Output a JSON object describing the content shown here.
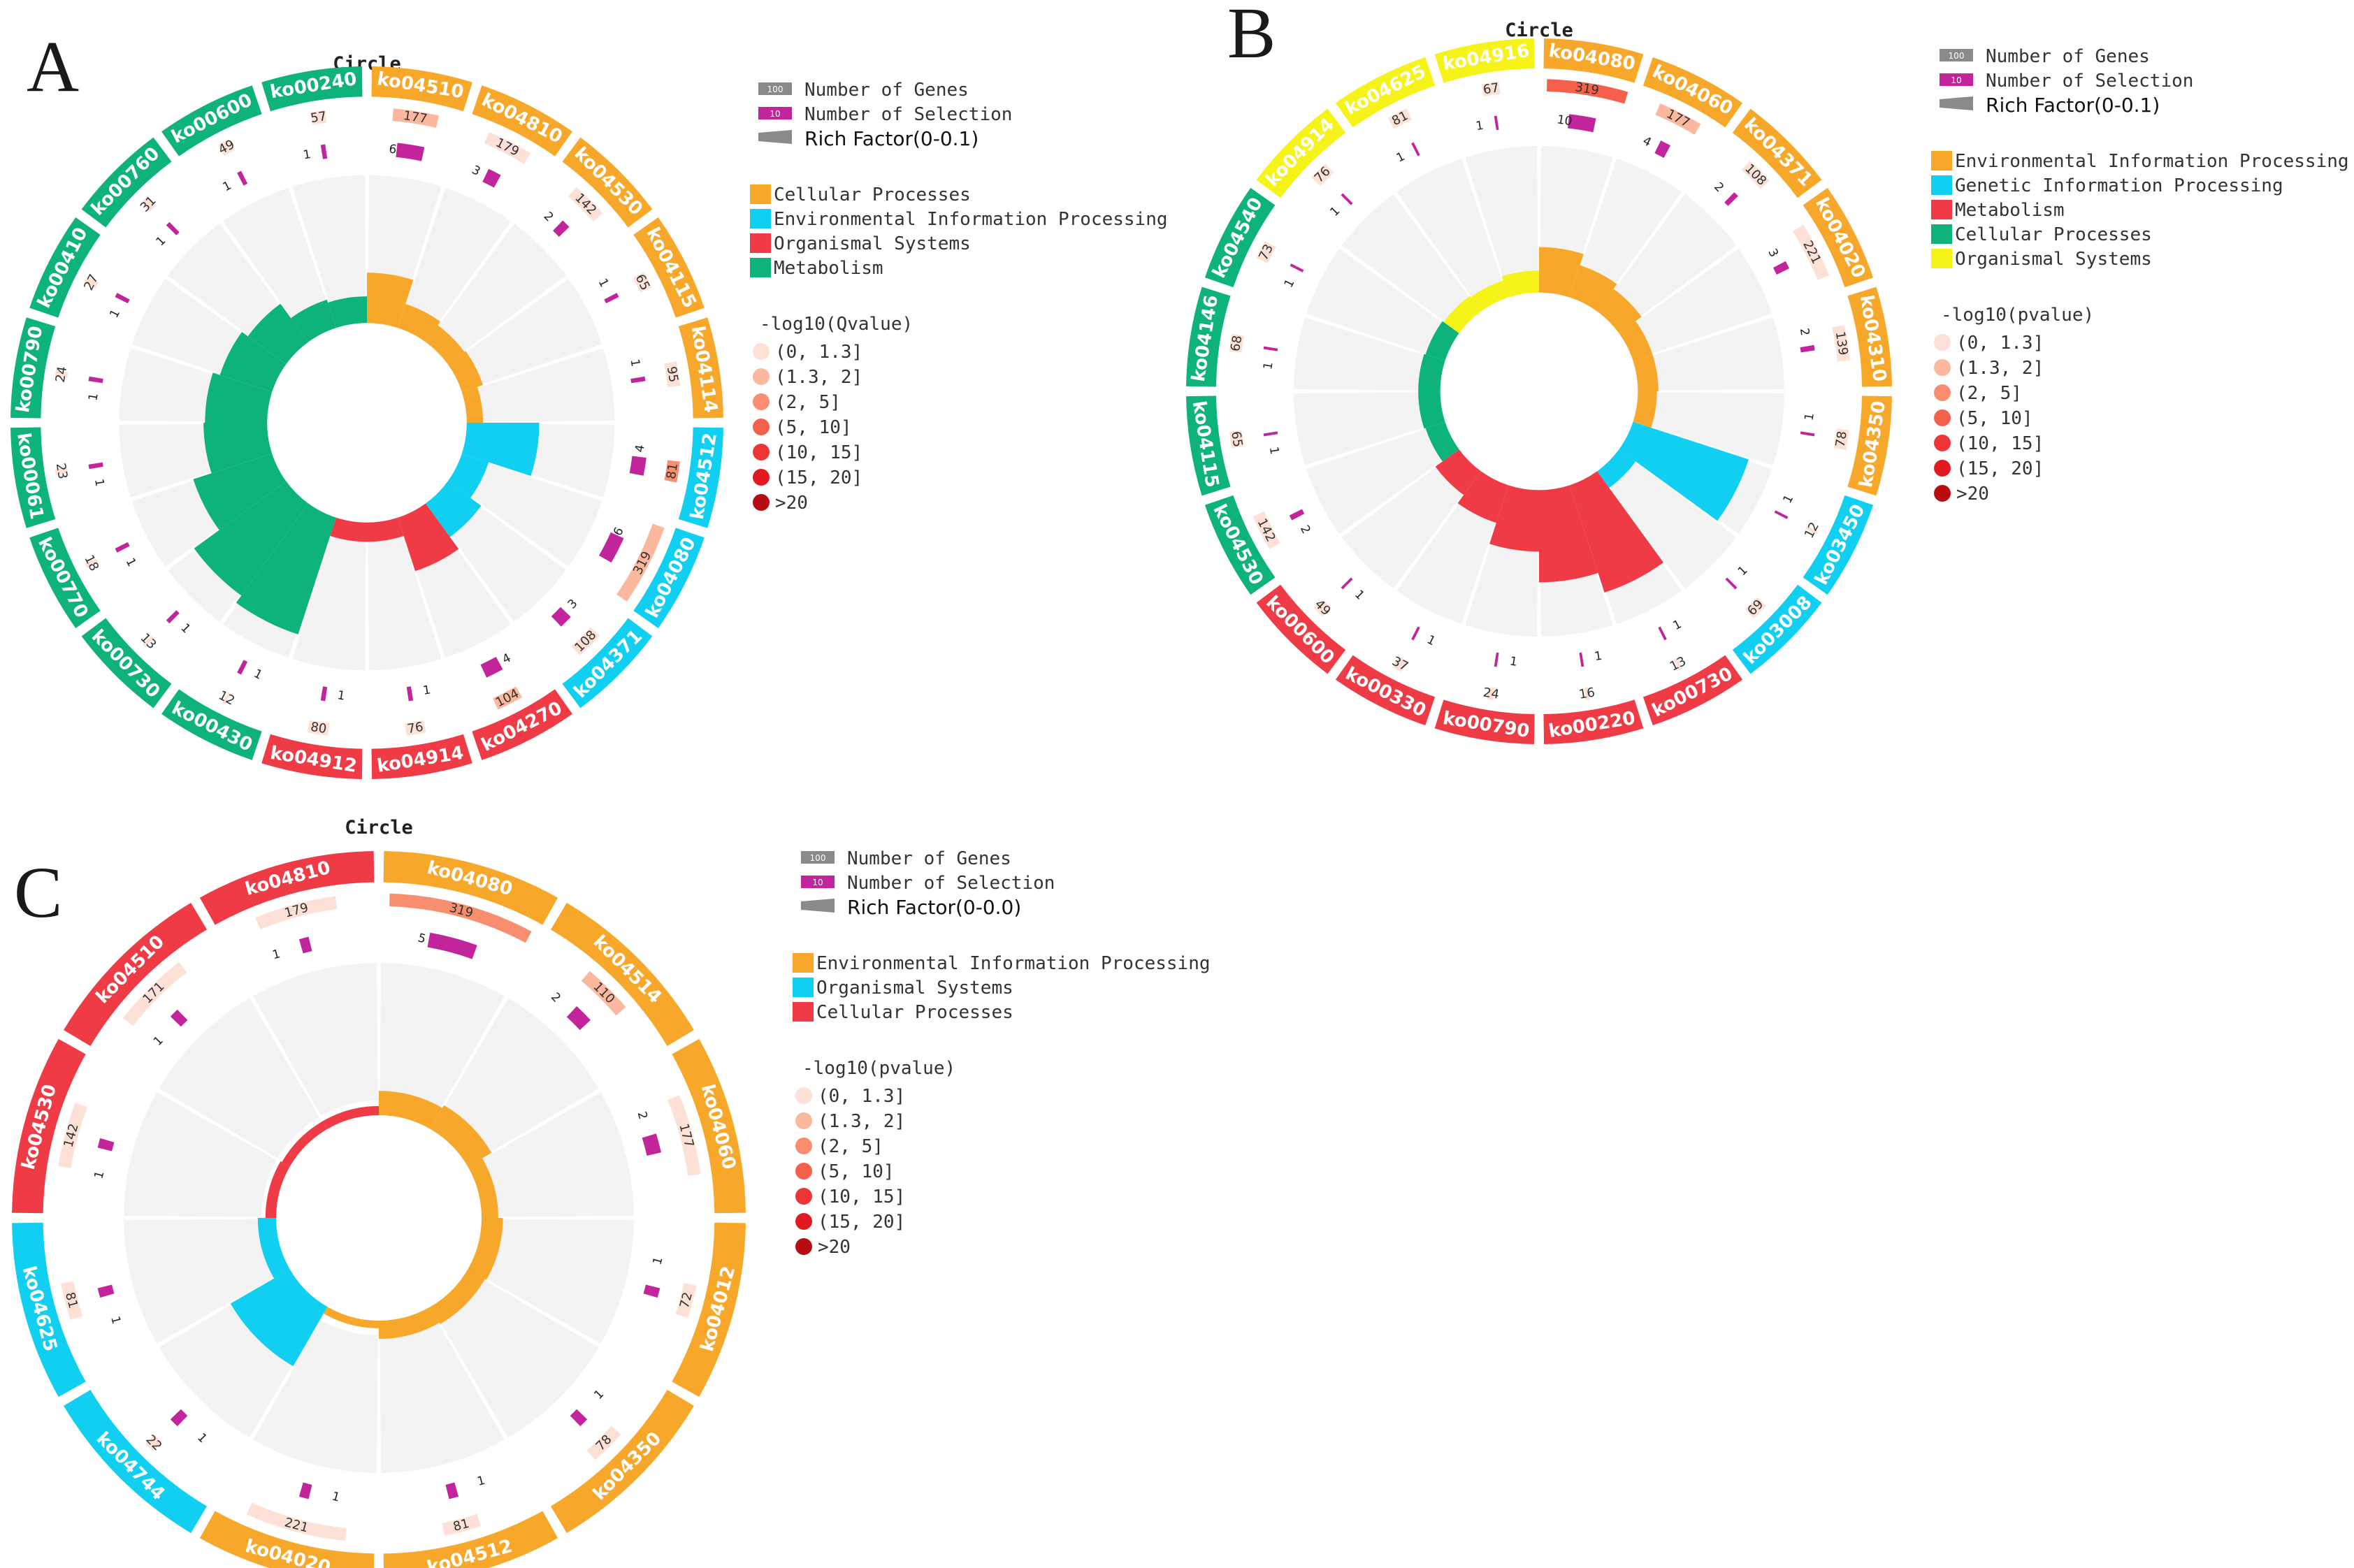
{
  "colors": {
    "cat": {
      "Cellular Processes": "#F7A82A",
      "Environmental Information Processing": "#F7A82A",
      "Organismal Systems": "#EE3B46",
      "Metabolism": "#0DB37A",
      "Genetic Information Processing": "#10CFF0"
    },
    "catA": {
      "Cellular Processes": "#F7A82A",
      "Environmental Information Processing": "#10CFF0",
      "Organismal Systems": "#EE3B46",
      "Metabolism": "#0DB37A"
    },
    "catB": {
      "Environmental Information Processing": "#F7A82A",
      "Genetic Information Processing": "#10CFF0",
      "Metabolism": "#EE3B46",
      "Cellular Processes": "#0DB37A",
      "Organismal Systems": "#F5F317"
    },
    "catC": {
      "Environmental Information Processing": "#F7A82A",
      "Organismal Systems": "#10CFF0",
      "Cellular Processes": "#EE3B46"
    },
    "scale": [
      "#FDE1D6",
      "#FBB89E",
      "#F88D6F",
      "#F4604B",
      "#ED3535",
      "#E21A1F",
      "#B70D13"
    ],
    "selection": "#C2249C",
    "genes_swatch": "#8A8A8A",
    "rich_swatch": "#8A8A8A",
    "ring_bg": "#F3F3F3"
  },
  "legend_common": {
    "genes_label": "Number of Genes",
    "genes_swatch_text": "100",
    "sel_label": "Number of Selection",
    "sel_swatch_text": "10",
    "scale_labels": [
      "(0, 1.3]",
      "(1.3, 2]",
      "(2, 5]",
      "(5, 10]",
      "(10, 15]",
      "(15, 20]",
      ">20"
    ]
  },
  "panels": [
    {
      "letter": "A",
      "title": "Circle",
      "rich_label": "Rich Factor(0-0.1)",
      "scale_title": "-log10(Qvalue)",
      "categories": [
        "Cellular Processes",
        "Environmental Information Processing",
        "Organismal Systems",
        "Metabolism"
      ],
      "chart_data": {
        "type": "circle",
        "terms": [
          {
            "id": "ko04510",
            "category": "Cellular Processes",
            "genes": 177,
            "selection": 6,
            "rich": 0.034,
            "level": 1
          },
          {
            "id": "ko04810",
            "category": "Cellular Processes",
            "genes": 179,
            "selection": 3,
            "rich": 0.017,
            "level": 0
          },
          {
            "id": "ko04530",
            "category": "Cellular Processes",
            "genes": 142,
            "selection": 2,
            "rich": 0.014,
            "level": 0
          },
          {
            "id": "ko04115",
            "category": "Cellular Processes",
            "genes": 65,
            "selection": 1,
            "rich": 0.015,
            "level": 0
          },
          {
            "id": "ko04114",
            "category": "Cellular Processes",
            "genes": 95,
            "selection": 1,
            "rich": 0.011,
            "level": 0
          },
          {
            "id": "ko04512",
            "category": "Environmental Information Processing",
            "genes": 81,
            "selection": 4,
            "rich": 0.049,
            "level": 2
          },
          {
            "id": "ko04080",
            "category": "Environmental Information Processing",
            "genes": 319,
            "selection": 6,
            "rich": 0.019,
            "level": 1
          },
          {
            "id": "ko04371",
            "category": "Environmental Information Processing",
            "genes": 108,
            "selection": 3,
            "rich": 0.028,
            "level": 0
          },
          {
            "id": "ko04270",
            "category": "Organismal Systems",
            "genes": 104,
            "selection": 4,
            "rich": 0.038,
            "level": 1
          },
          {
            "id": "ko04914",
            "category": "Organismal Systems",
            "genes": 76,
            "selection": 1,
            "rich": 0.013,
            "level": 0
          },
          {
            "id": "ko04912",
            "category": "Organismal Systems",
            "genes": 80,
            "selection": 1,
            "rich": 0.013,
            "level": 0
          },
          {
            "id": "ko00430",
            "category": "Metabolism",
            "genes": 12,
            "selection": 1,
            "rich": 0.083,
            "level": 0
          },
          {
            "id": "ko00730",
            "category": "Metabolism",
            "genes": 13,
            "selection": 1,
            "rich": 0.077,
            "level": 0
          },
          {
            "id": "ko00770",
            "category": "Metabolism",
            "genes": 18,
            "selection": 1,
            "rich": 0.056,
            "level": 0
          },
          {
            "id": "ko00061",
            "category": "Metabolism",
            "genes": 23,
            "selection": 1,
            "rich": 0.043,
            "level": 0
          },
          {
            "id": "ko00790",
            "category": "Metabolism",
            "genes": 24,
            "selection": 1,
            "rich": 0.042,
            "level": 0
          },
          {
            "id": "ko00410",
            "category": "Metabolism",
            "genes": 27,
            "selection": 1,
            "rich": 0.037,
            "level": 0
          },
          {
            "id": "ko00760",
            "category": "Metabolism",
            "genes": 31,
            "selection": 1,
            "rich": 0.032,
            "level": 0
          },
          {
            "id": "ko00600",
            "category": "Metabolism",
            "genes": 49,
            "selection": 1,
            "rich": 0.02,
            "level": 0
          },
          {
            "id": "ko00240",
            "category": "Metabolism",
            "genes": 57,
            "selection": 1,
            "rich": 0.018,
            "level": 0
          }
        ]
      }
    },
    {
      "letter": "B",
      "title": "Circle",
      "rich_label": "Rich Factor(0-0.1)",
      "scale_title": "-log10(pvalue)",
      "categories": [
        "Environmental Information Processing",
        "Genetic Information Processing",
        "Metabolism",
        "Cellular Processes",
        "Organismal Systems"
      ],
      "chart_data": {
        "type": "circle",
        "terms": [
          {
            "id": "ko04080",
            "category": "Environmental Information Processing",
            "genes": 319,
            "selection": 10,
            "rich": 0.031,
            "level": 3
          },
          {
            "id": "ko04060",
            "category": "Environmental Information Processing",
            "genes": 177,
            "selection": 4,
            "rich": 0.023,
            "level": 1
          },
          {
            "id": "ko04371",
            "category": "Environmental Information Processing",
            "genes": 108,
            "selection": 2,
            "rich": 0.019,
            "level": 0
          },
          {
            "id": "ko04020",
            "category": "Environmental Information Processing",
            "genes": 221,
            "selection": 3,
            "rich": 0.014,
            "level": 0
          },
          {
            "id": "ko04310",
            "category": "Environmental Information Processing",
            "genes": 139,
            "selection": 2,
            "rich": 0.014,
            "level": 0
          },
          {
            "id": "ko04350",
            "category": "Environmental Information Processing",
            "genes": 78,
            "selection": 1,
            "rich": 0.013,
            "level": 0
          },
          {
            "id": "ko03450",
            "category": "Genetic Information Processing",
            "genes": 12,
            "selection": 1,
            "rich": 0.083,
            "level": 0
          },
          {
            "id": "ko03008",
            "category": "Genetic Information Processing",
            "genes": 69,
            "selection": 1,
            "rich": 0.014,
            "level": 0
          },
          {
            "id": "ko00730",
            "category": "Metabolism",
            "genes": 13,
            "selection": 1,
            "rich": 0.077,
            "level": 0
          },
          {
            "id": "ko00220",
            "category": "Metabolism",
            "genes": 16,
            "selection": 1,
            "rich": 0.063,
            "level": 0
          },
          {
            "id": "ko00790",
            "category": "Metabolism",
            "genes": 24,
            "selection": 1,
            "rich": 0.042,
            "level": 0
          },
          {
            "id": "ko00330",
            "category": "Metabolism",
            "genes": 37,
            "selection": 1,
            "rich": 0.027,
            "level": 0
          },
          {
            "id": "ko00600",
            "category": "Metabolism",
            "genes": 49,
            "selection": 1,
            "rich": 0.02,
            "level": 0
          },
          {
            "id": "ko04530",
            "category": "Cellular Processes",
            "genes": 142,
            "selection": 2,
            "rich": 0.014,
            "level": 0
          },
          {
            "id": "ko04115",
            "category": "Cellular Processes",
            "genes": 65,
            "selection": 1,
            "rich": 0.015,
            "level": 0
          },
          {
            "id": "ko04146",
            "category": "Cellular Processes",
            "genes": 68,
            "selection": 1,
            "rich": 0.015,
            "level": 0
          },
          {
            "id": "ko04540",
            "category": "Cellular Processes",
            "genes": 73,
            "selection": 1,
            "rich": 0.014,
            "level": 0
          },
          {
            "id": "ko04914",
            "category": "Organismal Systems",
            "genes": 76,
            "selection": 1,
            "rich": 0.013,
            "level": 0
          },
          {
            "id": "ko04625",
            "category": "Organismal Systems",
            "genes": 81,
            "selection": 1,
            "rich": 0.012,
            "level": 0
          },
          {
            "id": "ko04916",
            "category": "Organismal Systems",
            "genes": 67,
            "selection": 1,
            "rich": 0.015,
            "level": 0
          }
        ]
      }
    },
    {
      "letter": "C",
      "title": "Circle",
      "rich_label": "Rich Factor(0-0.0)",
      "scale_title": "-log10(pvalue)",
      "categories": [
        "Environmental Information Processing",
        "Organismal Systems",
        "Cellular Processes"
      ],
      "chart_data": {
        "type": "circle",
        "terms": [
          {
            "id": "ko04080",
            "category": "Environmental Information Processing",
            "genes": 319,
            "selection": 5,
            "rich": 0.016,
            "level": 2
          },
          {
            "id": "ko04514",
            "category": "Environmental Information Processing",
            "genes": 110,
            "selection": 2,
            "rich": 0.018,
            "level": 1
          },
          {
            "id": "ko04060",
            "category": "Environmental Information Processing",
            "genes": 177,
            "selection": 2,
            "rich": 0.011,
            "level": 0
          },
          {
            "id": "ko04012",
            "category": "Environmental Information Processing",
            "genes": 72,
            "selection": 1,
            "rich": 0.014,
            "level": 0
          },
          {
            "id": "ko04350",
            "category": "Environmental Information Processing",
            "genes": 78,
            "selection": 1,
            "rich": 0.013,
            "level": 0
          },
          {
            "id": "ko04512",
            "category": "Environmental Information Processing",
            "genes": 81,
            "selection": 1,
            "rich": 0.012,
            "level": 0
          },
          {
            "id": "ko04020",
            "category": "Environmental Information Processing",
            "genes": 221,
            "selection": 1,
            "rich": 0.005,
            "level": 0
          },
          {
            "id": "ko04744",
            "category": "Organismal Systems",
            "genes": 22,
            "selection": 1,
            "rich": 0.045,
            "level": 0
          },
          {
            "id": "ko04625",
            "category": "Organismal Systems",
            "genes": 81,
            "selection": 1,
            "rich": 0.012,
            "level": 0
          },
          {
            "id": "ko04530",
            "category": "Cellular Processes",
            "genes": 142,
            "selection": 1,
            "rich": 0.007,
            "level": 0
          },
          {
            "id": "ko04510",
            "category": "Cellular Processes",
            "genes": 171,
            "selection": 1,
            "rich": 0.006,
            "level": 0
          },
          {
            "id": "ko04810",
            "category": "Cellular Processes",
            "genes": 179,
            "selection": 1,
            "rich": 0.006,
            "level": 0
          }
        ]
      }
    }
  ]
}
